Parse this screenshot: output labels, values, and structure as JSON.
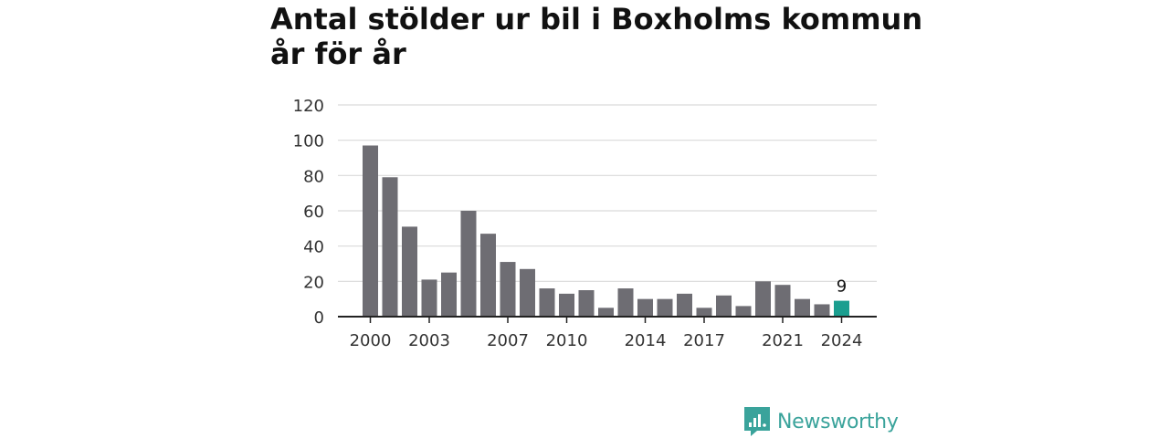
{
  "title_line1": "Antal stölder ur bil i Boxholms kommun",
  "title_line2": "år för år",
  "brand": {
    "name": "Newsworthy",
    "icon": "newsworthy-logo-icon",
    "color": "#3aa39b"
  },
  "colors": {
    "bar": "#6e6d73",
    "highlight": "#1a9e8f",
    "grid": "#d9d9d9",
    "axis": "#222222"
  },
  "chart_data": {
    "type": "bar",
    "title": "Antal stölder ur bil i Boxholms kommun år för år",
    "xlabel": "",
    "ylabel": "",
    "ylim": [
      0,
      120
    ],
    "yticks": [
      0,
      20,
      40,
      60,
      80,
      100,
      120
    ],
    "categories": [
      "2000",
      "2001",
      "2002",
      "2003",
      "2004",
      "2005",
      "2006",
      "2007",
      "2008",
      "2009",
      "2010",
      "2011",
      "2012",
      "2013",
      "2014",
      "2015",
      "2016",
      "2017",
      "2018",
      "2019",
      "2020",
      "2021",
      "2022",
      "2023",
      "2024"
    ],
    "xtick_labels": [
      "2000",
      "2003",
      "2007",
      "2010",
      "2014",
      "2017",
      "2021",
      "2024"
    ],
    "values": [
      97,
      79,
      51,
      21,
      25,
      60,
      47,
      31,
      27,
      16,
      13,
      15,
      5,
      16,
      10,
      10,
      13,
      5,
      12,
      6,
      20,
      18,
      10,
      7,
      9
    ],
    "highlight": {
      "category": "2024",
      "value_label": "9"
    },
    "grid": true,
    "legend": "none"
  }
}
